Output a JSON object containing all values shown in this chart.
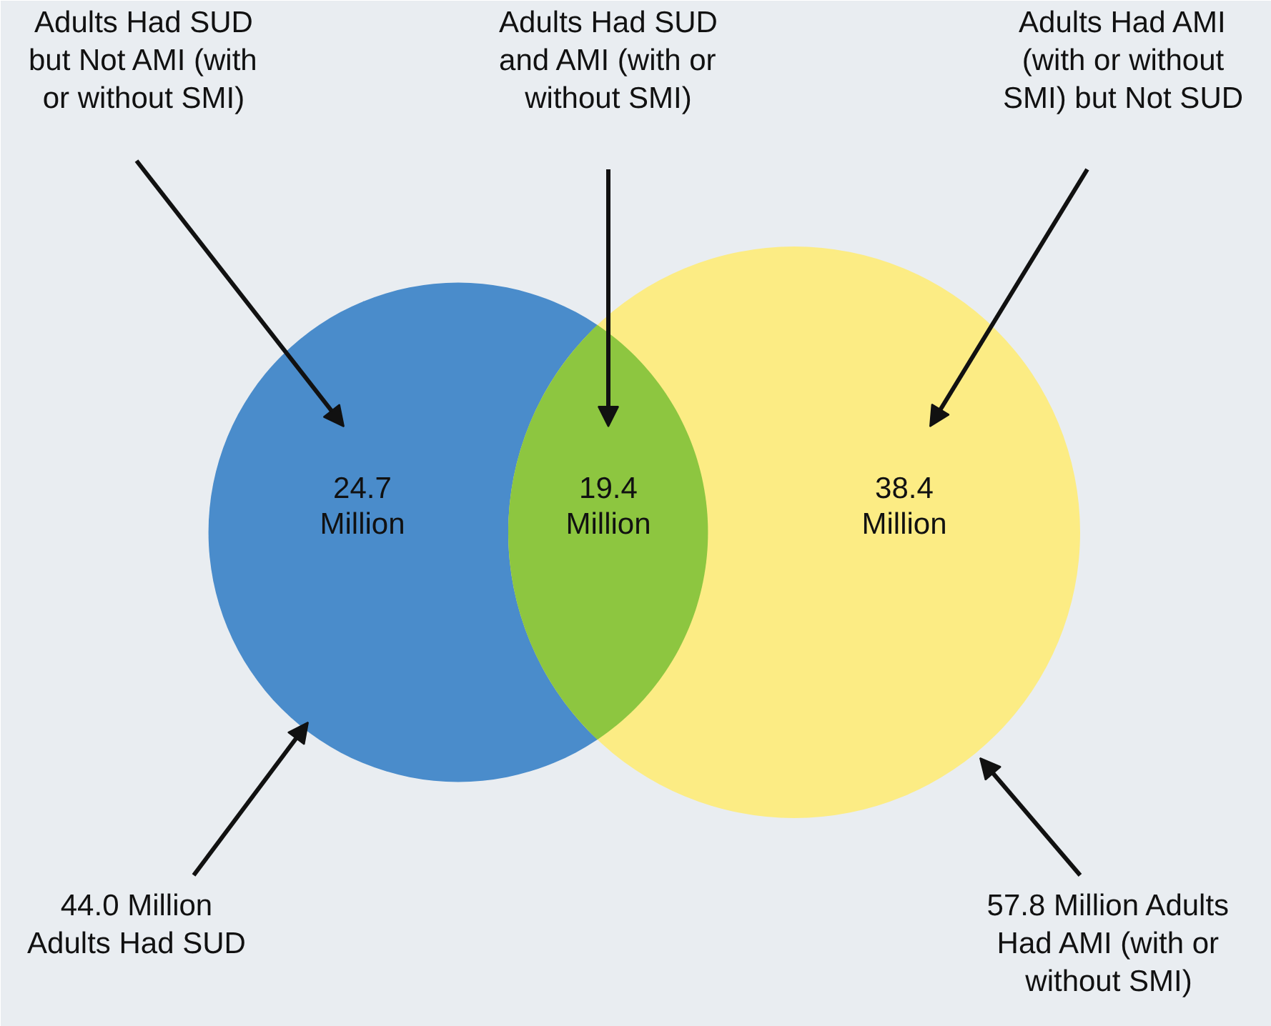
{
  "chart_data": {
    "type": "other",
    "categories": [
      "Adults Had SUD but Not AMI (with or without SMI)",
      "Adults Had SUD and AMI (with or without SMI)",
      "Adults Had AMI (with or without SMI) but Not SUD"
    ],
    "values": [
      24.7,
      19.4,
      38.4
    ],
    "value_labels": [
      "24.7 Million",
      "19.4 Million",
      "38.4 Million"
    ],
    "colors": [
      "#4a8ccb",
      "#8dc640",
      "#fcec84"
    ],
    "annotations": [
      "44.0 Million Adults Had SUD",
      "57.8 Million Adults Had AMI (with or without SMI)"
    ]
  }
}
